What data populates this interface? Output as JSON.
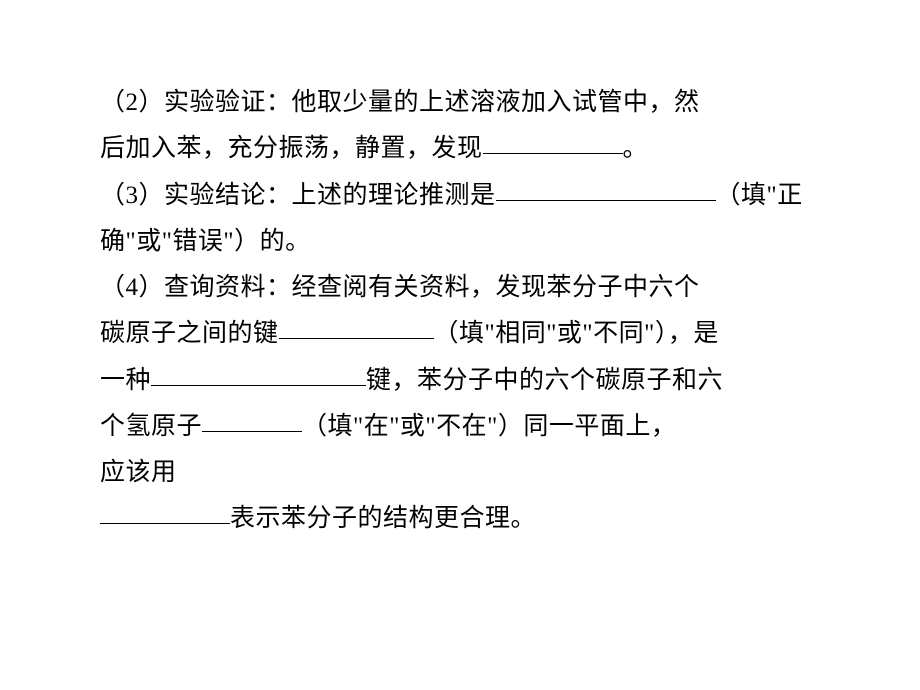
{
  "doc": {
    "font_size": 25,
    "text_color": "#000000",
    "background_color": "#ffffff",
    "line_height": 1.85,
    "blank_widths": {
      "b1": 140,
      "b2": 220,
      "b3": 155,
      "b4": 215,
      "b5": 100,
      "b6": 130
    },
    "lines": {
      "l1": "（2）实验验证：他取少量的上述溶液加入试管中，然",
      "l2a": "后加入苯，充分振荡，静置，发现",
      "l2b": "。",
      "l3a": "（3）实验结论：上述的理论推测是",
      "l3b": "（填\"正",
      "l4": "确\"或\"错误\"）的。",
      "l5": "（4）查询资料：经查阅有关资料，发现苯分子中六个",
      "l6a": "碳原子之间的键",
      "l6b": "（填\"相同\"或\"不同\"），是",
      "l7a": "一种",
      "l7b": "键，苯分子中的六个碳原子和六",
      "l8a": "个氢原子",
      "l8b": "（填\"在\"或\"不在\"）同一平面上，",
      "l9": "应该用",
      "l10a": "",
      "l10b": "表示苯分子的结构更合理。"
    }
  }
}
